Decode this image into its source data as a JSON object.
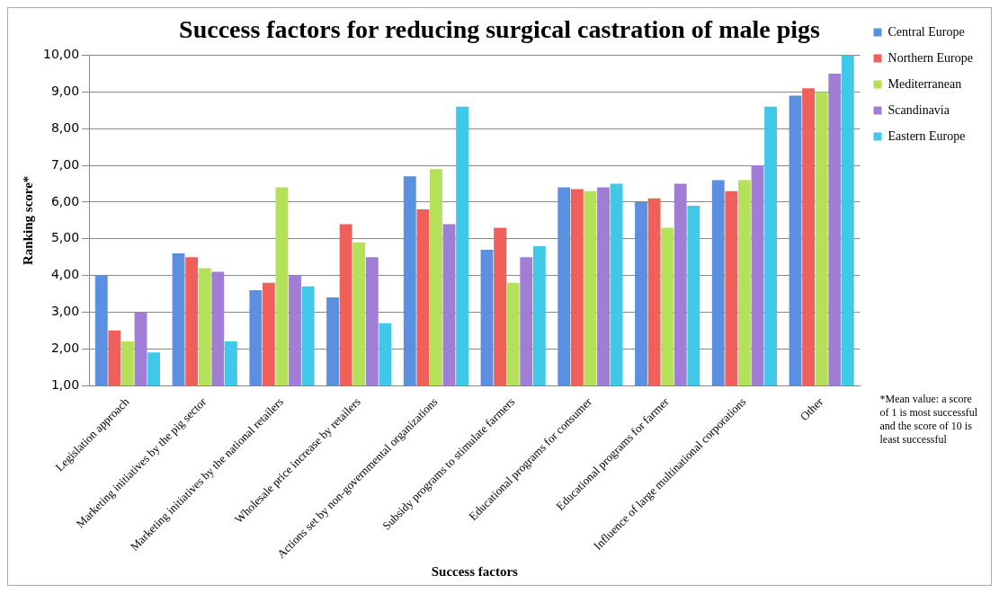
{
  "chart_data": {
    "type": "bar",
    "title": "Success factors for reducing surgical castration of male pigs",
    "xlabel": "Success factors",
    "ylabel": "Ranking score*",
    "categories": [
      "Legislation approach",
      "Marketing initiatives by the pig sector",
      "Marketing initiatives by the national retailers",
      "Wholesale price increase by retailers",
      "Actions set by non-governmental organizations",
      "Subsidy programs to stimulate farmers",
      "Educational programs for consumer",
      "Educational programs for farmer",
      "Influence of large multinational corporations",
      "Other"
    ],
    "series": [
      {
        "name": "Central Europe",
        "color": "#5b8fe0",
        "values": [
          4.0,
          4.6,
          3.6,
          3.4,
          6.7,
          4.7,
          6.4,
          6.0,
          6.6,
          8.9
        ]
      },
      {
        "name": "Northern Europe",
        "color": "#f0605a",
        "values": [
          2.5,
          4.5,
          3.8,
          5.4,
          5.8,
          5.3,
          6.35,
          6.1,
          6.3,
          9.1
        ]
      },
      {
        "name": "Mediterranean",
        "color": "#b5e05a",
        "values": [
          2.2,
          4.2,
          6.4,
          4.9,
          6.9,
          3.8,
          6.3,
          5.3,
          6.6,
          9.0
        ]
      },
      {
        "name": "Scandinavia",
        "color": "#a07ed6",
        "values": [
          3.0,
          4.1,
          4.0,
          4.5,
          5.4,
          4.5,
          6.4,
          6.5,
          7.0,
          9.5
        ]
      },
      {
        "name": "Eastern Europe",
        "color": "#40c8e8",
        "values": [
          1.9,
          2.2,
          3.7,
          2.7,
          8.6,
          4.8,
          6.5,
          5.9,
          8.6,
          10.0
        ]
      }
    ],
    "ylim": [
      1,
      10
    ],
    "yticks": [
      {
        "value": 1,
        "label": "1,00"
      },
      {
        "value": 2,
        "label": "2,00"
      },
      {
        "value": 3,
        "label": "3,00"
      },
      {
        "value": 4,
        "label": "4,00"
      },
      {
        "value": 5,
        "label": "5,00"
      },
      {
        "value": 6,
        "label": "6,00"
      },
      {
        "value": 7,
        "label": "7,00"
      },
      {
        "value": 8,
        "label": "8,00"
      },
      {
        "value": 9,
        "label": "9,00"
      },
      {
        "value": 10,
        "label": "10,00"
      }
    ],
    "grid": "y",
    "legend": "right",
    "annotations": [
      "*Mean value: a score of 1 is most successful and the score of 10 is least successful"
    ]
  }
}
